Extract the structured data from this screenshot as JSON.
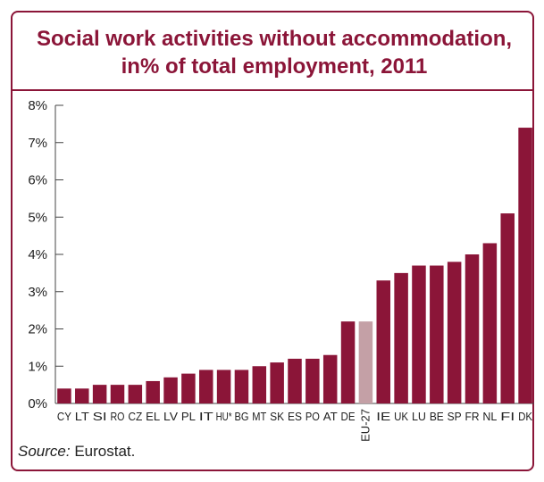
{
  "colors": {
    "accent": "#8b1538",
    "highlight": "#c4a0a6"
  },
  "chart_data": {
    "type": "bar",
    "title_line1": "Social work activities without accommodation,",
    "title_line2": "in% of total employment, 2011",
    "xlabel": "",
    "ylabel": "",
    "ylim": [
      0,
      8
    ],
    "yticks": [
      "0%",
      "1%",
      "2%",
      "3%",
      "4%",
      "5%",
      "6%",
      "7%",
      "8%"
    ],
    "grid": false,
    "highlight_category": "EU-27",
    "categories": [
      "CY",
      "LT",
      "SI",
      "RO",
      "CZ",
      "EL",
      "LV",
      "PL",
      "IT",
      "HU*",
      "BG",
      "MT",
      "SK",
      "ES",
      "PO",
      "AT",
      "DE",
      "EU-27",
      "IE",
      "UK",
      "LU",
      "BE",
      "SP",
      "FR",
      "NL",
      "FI",
      "DK"
    ],
    "values": [
      0.4,
      0.4,
      0.5,
      0.5,
      0.5,
      0.6,
      0.7,
      0.8,
      0.9,
      0.9,
      0.9,
      1.0,
      1.1,
      1.2,
      1.2,
      1.3,
      2.2,
      2.2,
      3.3,
      3.5,
      3.7,
      3.7,
      3.8,
      4.0,
      4.3,
      5.1,
      7.4
    ]
  },
  "source": {
    "label": "Source:",
    "text": " Eurostat."
  }
}
